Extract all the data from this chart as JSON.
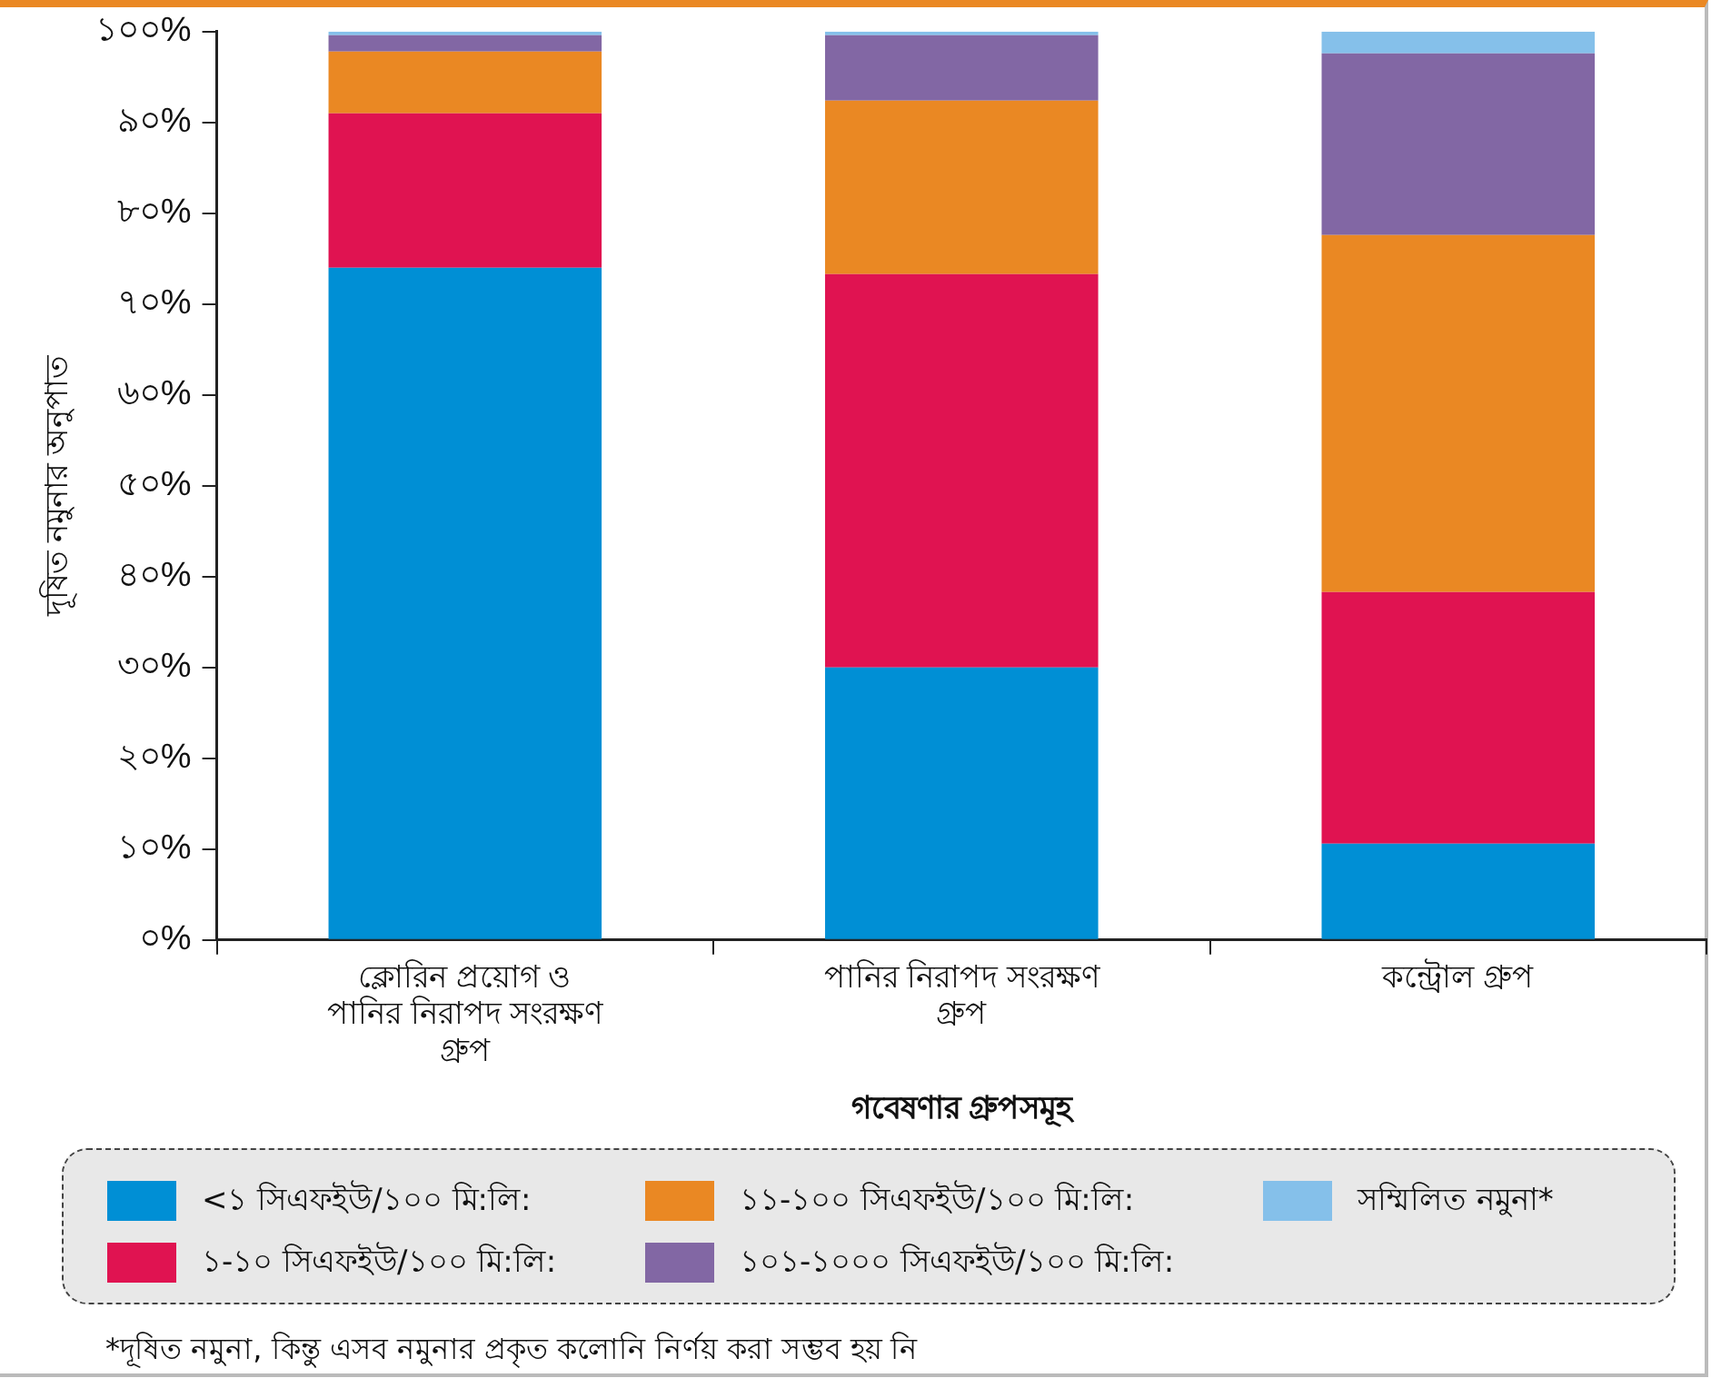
{
  "chart_data": {
    "type": "bar",
    "stacked": true,
    "xlabel": "গবেষণার গ্রুপসমূহ",
    "ylabel": "দূষিত নমুনার অনুপাত",
    "categories": [
      "ক্লোরিন প্রয়োগ ও পানির নিরাপদ সংরক্ষণ গ্রুপ",
      "পানির নিরাপদ সংরক্ষণ গ্রুপ",
      "কন্ট্রোল গ্রুপ"
    ],
    "series": [
      {
        "name": "<১ সিএফইউ/১০০ মি:লি:",
        "color": "#008fd5",
        "values": [
          74,
          30,
          10.6
        ]
      },
      {
        "name": "১-১০ সিএফইউ/১০০ মি:লি:",
        "color": "#e01351",
        "values": [
          17,
          43.3,
          27.7
        ]
      },
      {
        "name": "১১-১০০ সিএফইউ/১০০ মি:লি:",
        "color": "#ea8823",
        "values": [
          6.8,
          19.1,
          39.3
        ]
      },
      {
        "name": "১০১-১০০০ সিএফইউ/১০০ মি:লি:",
        "color": "#8267a4",
        "values": [
          1.8,
          7.2,
          20
        ]
      },
      {
        "name": "সম্মিলিত নমুনা*",
        "color": "#85c0ea",
        "values": [
          0.4,
          0.4,
          2.4
        ]
      }
    ],
    "ylim": [
      0,
      100
    ],
    "yticks": [
      {
        "value": 0,
        "label": "০%"
      },
      {
        "value": 10,
        "label": "১০%"
      },
      {
        "value": 20,
        "label": "২০%"
      },
      {
        "value": 30,
        "label": "৩০%"
      },
      {
        "value": 40,
        "label": "৪০%"
      },
      {
        "value": 50,
        "label": "৫০%"
      },
      {
        "value": 60,
        "label": "৬০%"
      },
      {
        "value": 70,
        "label": "৭০%"
      },
      {
        "value": 80,
        "label": "৮০%"
      },
      {
        "value": 90,
        "label": "৯০%"
      },
      {
        "value": 100,
        "label": "১০০%"
      }
    ],
    "grid": false,
    "legend": "bottom",
    "annotations": [
      "*দূষিত নমুনা, কিন্তু এসব নমুনার প্রকৃত কলোনি নির্ণয় করা সম্ভব হয় নি"
    ]
  }
}
